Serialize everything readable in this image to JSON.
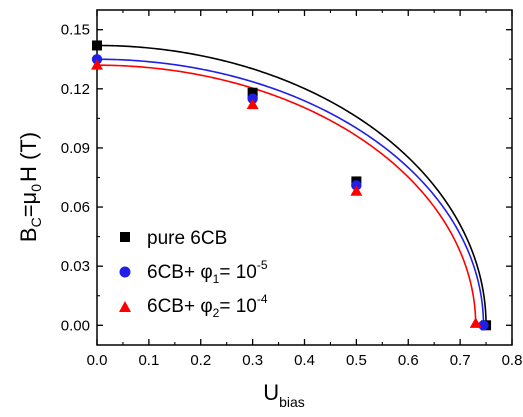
{
  "chart_data": {
    "type": "scatter",
    "xlim": [
      0.0,
      0.8
    ],
    "ylim": [
      -0.01,
      0.16
    ],
    "x_ticks": [
      0.0,
      0.1,
      0.2,
      0.3,
      0.4,
      0.5,
      0.6,
      0.7,
      0.8
    ],
    "x_tick_labels": [
      "0.0",
      "0.1",
      "0.2",
      "0.3",
      "0.4",
      "0.5",
      "0.6",
      "0.7",
      "0.8"
    ],
    "y_ticks": [
      0.0,
      0.03,
      0.06,
      0.09,
      0.12,
      0.15
    ],
    "y_tick_labels": [
      "0.00",
      "0.03",
      "0.06",
      "0.09",
      "0.12",
      "0.15"
    ],
    "xlabel": {
      "main": "U",
      "sub": "bias"
    },
    "ylabel": {
      "p1": "B",
      "s1": "C",
      "p2": "=μ",
      "s2": "0",
      "p3": "H (T)"
    },
    "legend_position": "bottom-left",
    "grid": false,
    "series": [
      {
        "name": "pure 6CB",
        "marker": "square",
        "color": "#000000",
        "x": [
          0.0,
          0.3,
          0.5,
          0.75
        ],
        "y": [
          0.142,
          0.118,
          0.073,
          0.0
        ],
        "fit": {
          "a": 0.142,
          "xc": 0.75
        }
      },
      {
        "name": "6CB+ φ1= 10-5",
        "marker": "circle",
        "color": "#1f1fe8",
        "x": [
          0.0,
          0.3,
          0.5,
          0.745
        ],
        "y": [
          0.135,
          0.115,
          0.071,
          0.0
        ],
        "fit": {
          "a": 0.135,
          "xc": 0.745
        }
      },
      {
        "name": "6CB+ φ2= 10-4",
        "marker": "triangle",
        "color": "#ff0000",
        "x": [
          0.0,
          0.3,
          0.5,
          0.73
        ],
        "y": [
          0.132,
          0.112,
          0.068,
          0.001
        ],
        "fit": {
          "a": 0.132,
          "xc": 0.73
        }
      }
    ]
  },
  "legend": [
    {
      "prefix": "pure 6CB",
      "phi": "",
      "phi_sub": "",
      "eq": "",
      "sup": ""
    },
    {
      "prefix": "6CB+ ",
      "phi": "φ",
      "phi_sub": "1",
      "eq": "= 10",
      "sup": "-5"
    },
    {
      "prefix": "6CB+ ",
      "phi": "φ",
      "phi_sub": "2",
      "eq": "= 10",
      "sup": "-4"
    }
  ]
}
